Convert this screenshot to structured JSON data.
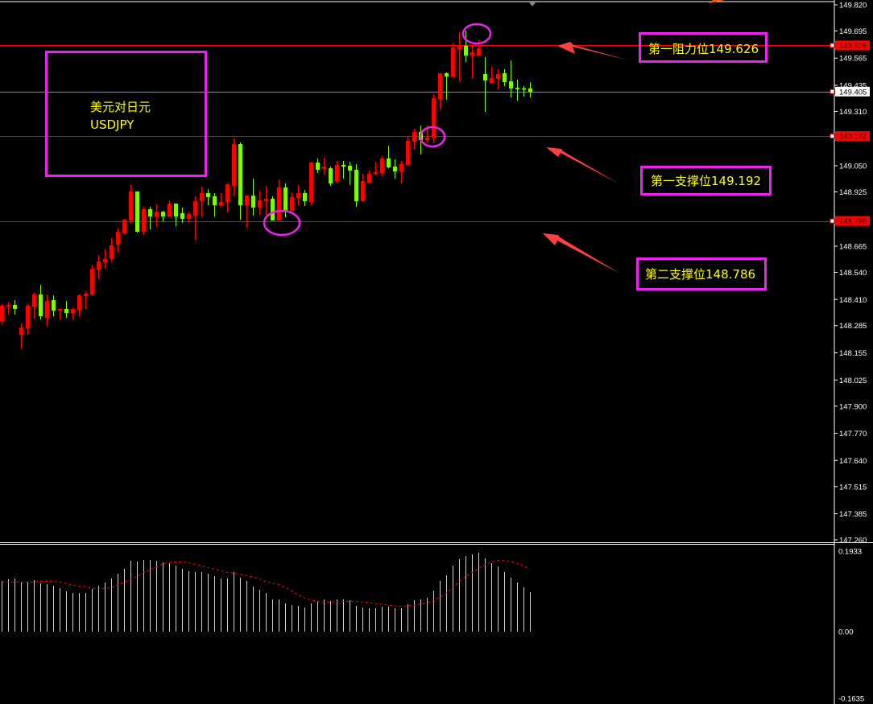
{
  "chart_data": [
    {
      "type": "candlestick",
      "symbol_note": {
        "line1": "美元对日元",
        "line2": "USDJPY"
      },
      "ylim": [
        147.26,
        149.82
      ],
      "y_ticks": [
        "149.820",
        "149.695",
        "149.565",
        "149.435",
        "149.310",
        "149.050",
        "148.925",
        "148.665",
        "148.540",
        "148.410",
        "148.285",
        "148.155",
        "148.025",
        "147.900",
        "147.770",
        "147.640",
        "147.515",
        "147.385",
        "147.260"
      ],
      "grid": false,
      "colors": {
        "up": "#ff0000",
        "down": "#7cfc00",
        "level_line": "#ff0000",
        "current_line": "#8a94a0",
        "annotation_box": "#ee22ee",
        "annotation_text": "#ffff00",
        "arrow": "#ff4040"
      },
      "current_price": {
        "label": "149.405",
        "value": 149.405
      },
      "levels": [
        {
          "value": 149.626,
          "axis_label": "149.626",
          "note": "第一阻力位149.626"
        },
        {
          "value": 149.192,
          "axis_label": "149.192",
          "note": "第一支撑位149.192"
        },
        {
          "value": 148.786,
          "axis_label": "148.786",
          "note": "第二支撑位148.786"
        }
      ],
      "ohlc_fields": [
        "open",
        "high",
        "low",
        "close"
      ],
      "candles": [
        [
          148.307,
          148.388,
          148.291,
          148.38
        ],
        [
          148.376,
          148.399,
          148.341,
          148.384
        ],
        [
          148.384,
          148.407,
          148.338,
          148.365
        ],
        [
          148.241,
          148.295,
          148.176,
          148.276
        ],
        [
          148.272,
          148.388,
          148.241,
          148.38
        ],
        [
          148.376,
          148.442,
          148.318,
          148.434
        ],
        [
          148.434,
          148.48,
          148.315,
          148.33
        ],
        [
          148.322,
          148.434,
          148.28,
          148.403
        ],
        [
          148.407,
          148.43,
          148.33,
          148.357
        ],
        [
          148.357,
          148.368,
          148.315,
          148.365
        ],
        [
          148.365,
          148.403,
          148.322,
          148.345
        ],
        [
          148.345,
          148.372,
          148.315,
          148.365
        ],
        [
          148.361,
          148.434,
          148.33,
          148.43
        ],
        [
          148.426,
          148.449,
          148.365,
          148.438
        ],
        [
          148.434,
          148.573,
          148.426,
          148.557
        ],
        [
          148.553,
          148.623,
          148.507,
          148.592
        ],
        [
          148.588,
          148.653,
          148.557,
          148.603
        ],
        [
          148.607,
          148.703,
          148.592,
          148.669
        ],
        [
          148.673,
          148.75,
          148.638,
          148.734
        ],
        [
          148.727,
          148.796,
          148.723,
          148.792
        ],
        [
          148.788,
          148.958,
          148.773,
          148.927
        ],
        [
          148.927,
          148.927,
          148.73,
          148.734
        ],
        [
          148.734,
          148.854,
          148.719,
          148.842
        ],
        [
          148.842,
          148.854,
          148.746,
          148.807
        ],
        [
          148.807,
          148.865,
          148.757,
          148.83
        ],
        [
          148.83,
          148.834,
          148.784,
          148.807
        ],
        [
          148.807,
          148.884,
          148.803,
          148.869
        ],
        [
          148.869,
          148.869,
          148.761,
          148.807
        ],
        [
          148.823,
          148.85,
          148.777,
          148.796
        ],
        [
          148.796,
          148.83,
          148.777,
          148.819
        ],
        [
          148.811,
          148.904,
          148.696,
          148.88
        ],
        [
          148.88,
          148.95,
          148.807,
          148.919
        ],
        [
          148.919,
          148.938,
          148.861,
          148.9
        ],
        [
          148.904,
          148.919,
          148.807,
          148.861
        ],
        [
          148.861,
          148.919,
          148.854,
          148.877
        ],
        [
          148.877,
          148.965,
          148.827,
          148.961
        ],
        [
          148.954,
          149.181,
          148.904,
          149.154
        ],
        [
          149.154,
          149.162,
          148.792,
          148.861
        ],
        [
          148.861,
          148.911,
          148.753,
          148.907
        ],
        [
          148.907,
          148.988,
          148.811,
          148.85
        ],
        [
          148.85,
          148.931,
          148.815,
          148.884
        ],
        [
          148.88,
          148.954,
          148.815,
          148.892
        ],
        [
          148.892,
          148.904,
          148.788,
          148.788
        ],
        [
          148.788,
          148.984,
          148.788,
          148.946
        ],
        [
          148.946,
          148.965,
          148.803,
          148.834
        ],
        [
          148.834,
          148.923,
          148.834,
          148.9
        ],
        [
          148.896,
          148.958,
          148.861,
          148.919
        ],
        [
          148.919,
          148.934,
          148.857,
          148.88
        ],
        [
          148.877,
          149.069,
          148.861,
          149.065
        ],
        [
          149.065,
          149.085,
          149.015,
          149.031
        ],
        [
          149.035,
          149.089,
          149.008,
          149.046
        ],
        [
          149.038,
          149.046,
          148.954,
          148.965
        ],
        [
          148.977,
          149.073,
          148.965,
          149.054
        ],
        [
          149.054,
          149.073,
          148.988,
          149.046
        ],
        [
          149.05,
          149.069,
          148.958,
          149.027
        ],
        [
          149.031,
          149.058,
          148.854,
          148.88
        ],
        [
          148.88,
          149.011,
          148.88,
          148.977
        ],
        [
          148.969,
          149.027,
          148.965,
          149.011
        ],
        [
          149.011,
          149.069,
          149.004,
          149.019
        ],
        [
          149.015,
          149.096,
          149.0,
          149.085
        ],
        [
          149.085,
          149.146,
          149.038,
          149.042
        ],
        [
          149.046,
          149.081,
          148.988,
          149.023
        ],
        [
          149.023,
          149.073,
          148.965,
          149.058
        ],
        [
          149.054,
          149.189,
          149.054,
          149.169
        ],
        [
          149.165,
          149.227,
          149.127,
          149.212
        ],
        [
          149.212,
          149.242,
          149.104,
          149.173
        ],
        [
          149.173,
          149.242,
          149.158,
          149.185
        ],
        [
          149.185,
          149.393,
          149.158,
          149.373
        ],
        [
          149.369,
          149.493,
          149.319,
          149.493
        ],
        [
          149.493,
          149.497,
          149.366,
          149.477
        ],
        [
          149.477,
          149.639,
          149.47,
          149.616
        ],
        [
          149.608,
          149.689,
          149.454,
          149.627
        ],
        [
          149.624,
          149.697,
          149.547,
          149.577
        ],
        [
          149.577,
          149.624,
          149.466,
          149.593
        ],
        [
          149.577,
          149.654,
          149.577,
          149.612
        ],
        [
          149.489,
          149.57,
          149.308,
          149.458
        ],
        [
          149.446,
          149.523,
          149.446,
          149.47
        ],
        [
          149.466,
          149.512,
          149.416,
          149.489
        ],
        [
          149.493,
          149.512,
          149.431,
          149.45
        ],
        [
          149.454,
          149.554,
          149.377,
          149.42
        ],
        [
          149.423,
          149.462,
          149.362,
          149.416
        ],
        [
          149.42,
          149.431,
          149.381,
          149.416
        ],
        [
          149.42,
          149.45,
          149.377,
          149.404
        ]
      ]
    },
    {
      "type": "bar",
      "ylim": [
        -0.1635,
        0.1933
      ],
      "y_ticks": [
        "0.1933",
        "0.00",
        "-0.1635"
      ],
      "colors": {
        "histogram": "#d0d0d0",
        "signal": "#ff0000"
      },
      "histogram": [
        0.1218,
        0.1256,
        0.1276,
        0.1179,
        0.1198,
        0.1237,
        0.116,
        0.114,
        0.1102,
        0.1044,
        0.0966,
        0.0928,
        0.0928,
        0.0928,
        0.1024,
        0.1102,
        0.1179,
        0.1276,
        0.1392,
        0.1508,
        0.1701,
        0.1681,
        0.172,
        0.172,
        0.1701,
        0.1662,
        0.1643,
        0.1585,
        0.1508,
        0.145,
        0.143,
        0.143,
        0.1392,
        0.1334,
        0.1276,
        0.1276,
        0.143,
        0.1295,
        0.1218,
        0.1082,
        0.1005,
        0.0928,
        0.0773,
        0.0773,
        0.0677,
        0.0638,
        0.0619,
        0.058,
        0.0677,
        0.0735,
        0.0773,
        0.0735,
        0.0773,
        0.0773,
        0.0754,
        0.0619,
        0.058,
        0.0561,
        0.0561,
        0.0599,
        0.0599,
        0.0561,
        0.0561,
        0.0657,
        0.0754,
        0.0773,
        0.0812,
        0.0986,
        0.1218,
        0.1353,
        0.1585,
        0.1739,
        0.1816,
        0.1855,
        0.1894,
        0.1759,
        0.1643,
        0.1565,
        0.143,
        0.1295,
        0.1179,
        0.1063,
        0.0947
      ],
      "signal": [
        0.1191,
        0.1191,
        0.1191,
        0.1191,
        0.1191,
        0.1191,
        0.1211,
        0.1211,
        0.1211,
        0.1191,
        0.1159,
        0.1114,
        0.1095,
        0.1082,
        0.1037,
        0.1037,
        0.1037,
        0.1056,
        0.1121,
        0.1185,
        0.1256,
        0.132,
        0.1417,
        0.1481,
        0.1558,
        0.1629,
        0.1662,
        0.1674,
        0.1674,
        0.1655,
        0.1623,
        0.1584,
        0.1539,
        0.1501,
        0.1462,
        0.1423,
        0.1404,
        0.1378,
        0.1346,
        0.1314,
        0.1269,
        0.1204,
        0.1166,
        0.1127,
        0.1063,
        0.0979,
        0.0889,
        0.0805,
        0.076,
        0.0728,
        0.0715,
        0.0715,
        0.0715,
        0.0721,
        0.0728,
        0.0728,
        0.0715,
        0.0696,
        0.0676,
        0.0657,
        0.0638,
        0.0618,
        0.0605,
        0.0618,
        0.0631,
        0.0657,
        0.0689,
        0.0747,
        0.0818,
        0.0914,
        0.1063,
        0.1204,
        0.132,
        0.1417,
        0.1513,
        0.161,
        0.1674,
        0.1707,
        0.1707,
        0.1687,
        0.1642,
        0.1584,
        0.1501
      ]
    }
  ]
}
